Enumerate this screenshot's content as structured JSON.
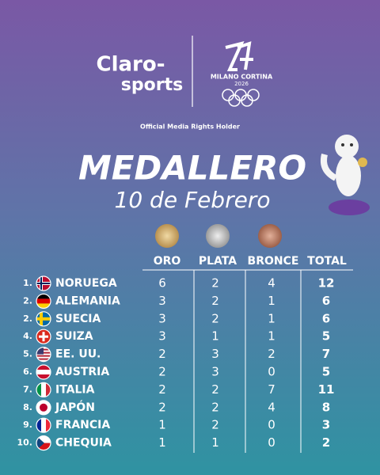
{
  "header": {
    "brand_top": "Claro-",
    "brand_bottom": "sports",
    "event_name": "MILANO CORTINA",
    "event_year": "2026",
    "rights_note": "Official Media Rights Holder",
    "title": "MEDALLERO",
    "subtitle": "10 de Febrero"
  },
  "table": {
    "columns": [
      "ORO",
      "PLATA",
      "BRONCE",
      "TOTAL"
    ],
    "rows": [
      [
        "1.",
        "NORUEGA",
        6,
        2,
        4,
        12
      ],
      [
        "2.",
        "ALEMANIA",
        3,
        2,
        1,
        6
      ],
      [
        "2.",
        "SUECIA",
        3,
        2,
        1,
        6
      ],
      [
        "4.",
        "SUIZA",
        3,
        1,
        1,
        5
      ],
      [
        "5.",
        "EE. UU.",
        2,
        3,
        2,
        7
      ],
      [
        "6.",
        "AUSTRIA",
        2,
        3,
        0,
        5
      ],
      [
        "7.",
        "ITALIA",
        2,
        2,
        7,
        11
      ],
      [
        "8.",
        "JAPÓN",
        2,
        2,
        4,
        8
      ],
      [
        "9.",
        "FRANCIA",
        1,
        2,
        0,
        3
      ],
      [
        "10.",
        "CHEQUIA",
        1,
        1,
        0,
        2
      ]
    ]
  }
}
